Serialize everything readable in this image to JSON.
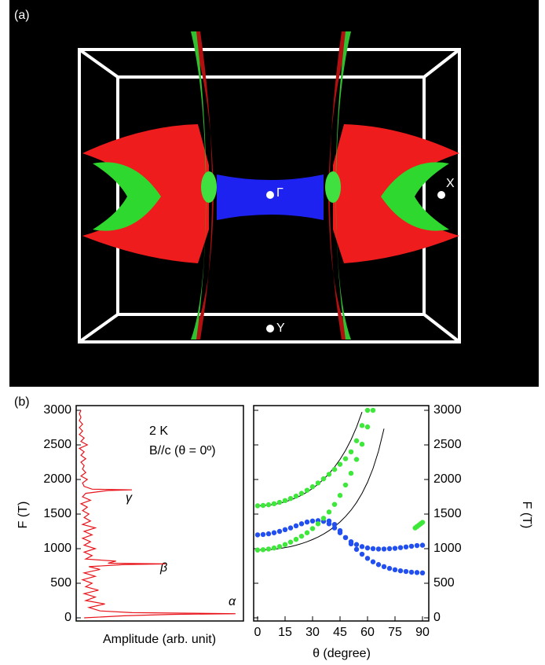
{
  "panel_a": {
    "label": "(a)",
    "points": [
      "Γ",
      "X",
      "Y"
    ]
  },
  "panel_b_label": "(b)",
  "chart_data": [
    {
      "type": "line",
      "xlabel": "Amplitude (arb. unit)",
      "ylabel": "F (T)",
      "annotations": [
        "2 K",
        "B//c (θ = 0º)",
        "γ",
        "β",
        "α"
      ],
      "y": [
        0,
        30,
        50,
        60,
        75,
        100,
        150,
        200,
        250,
        300,
        350,
        400,
        450,
        500,
        550,
        600,
        650,
        700,
        740,
        770,
        780,
        790,
        820,
        850,
        900,
        950,
        1000,
        1050,
        1100,
        1150,
        1200,
        1250,
        1300,
        1350,
        1400,
        1450,
        1500,
        1550,
        1600,
        1650,
        1700,
        1750,
        1800,
        1840,
        1850,
        1860,
        1900,
        1950,
        2000,
        2050,
        2100,
        2150,
        2200,
        2250,
        2300,
        2350,
        2400,
        2450,
        2500,
        2550,
        2600,
        2650,
        2700,
        2750,
        2800,
        2850,
        2900,
        2950,
        3000
      ],
      "series": [
        {
          "color": "#e8141b",
          "values": [
            0.05,
            0.3,
            0.6,
            1.0,
            0.35,
            0.15,
            0.08,
            0.18,
            0.06,
            0.12,
            0.05,
            0.14,
            0.06,
            0.1,
            0.04,
            0.12,
            0.05,
            0.15,
            0.08,
            0.3,
            0.56,
            0.2,
            0.25,
            0.06,
            0.1,
            0.05,
            0.12,
            0.05,
            0.09,
            0.04,
            0.1,
            0.05,
            0.12,
            0.04,
            0.09,
            0.05,
            0.08,
            0.04,
            0.07,
            0.03,
            0.09,
            0.04,
            0.06,
            0.2,
            0.35,
            0.1,
            0.05,
            0.04,
            0.07,
            0.03,
            0.06,
            0.04,
            0.05,
            0.03,
            0.06,
            0.03,
            0.05,
            0.02,
            0.07,
            0.03,
            0.05,
            0.02,
            0.04,
            0.02,
            0.04,
            0.02,
            0.03,
            0.02,
            0.03
          ]
        }
      ],
      "xlim": [
        0,
        1.05
      ],
      "ylim": [
        0,
        3000
      ],
      "yticks": [
        0,
        500,
        1000,
        1500,
        2000,
        2500,
        3000
      ]
    },
    {
      "type": "scatter",
      "xlabel": "θ (degree)",
      "ylabel": "F (T)",
      "xlim": [
        0,
        90
      ],
      "xticks": [
        0,
        15,
        30,
        45,
        60,
        75,
        90
      ],
      "ylim": [
        0,
        3000
      ],
      "yticks": [
        0,
        500,
        1000,
        1500,
        2000,
        2500,
        3000
      ],
      "series": [
        {
          "mode": "line",
          "color": "#000000",
          "x": [
            0,
            3,
            6,
            9,
            12,
            15,
            18,
            21,
            24,
            27,
            30,
            33,
            36,
            39,
            42,
            45,
            48,
            51,
            54,
            57
          ],
          "values": [
            1620,
            1622,
            1629,
            1640,
            1656,
            1677,
            1703,
            1735,
            1773,
            1818,
            1871,
            1932,
            2002,
            2085,
            2180,
            2291,
            2421,
            2574,
            2756,
            2975
          ]
        },
        {
          "mode": "line",
          "color": "#000000",
          "x": [
            0,
            3,
            6,
            9,
            12,
            15,
            18,
            21,
            24,
            27,
            30,
            33,
            36,
            39,
            42,
            45,
            48,
            51,
            54,
            57,
            60,
            63,
            66,
            69
          ],
          "values": [
            980,
            981,
            985,
            992,
            1002,
            1015,
            1030,
            1050,
            1073,
            1100,
            1132,
            1168,
            1211,
            1261,
            1319,
            1386,
            1465,
            1557,
            1667,
            1800,
            1960,
            2159,
            2410,
            2734
          ]
        },
        {
          "mode": "markers",
          "color": "#2250f0",
          "x": [
            0,
            3,
            6,
            9,
            12,
            15,
            18,
            21,
            24,
            27,
            30,
            33,
            36,
            39,
            42,
            45,
            48,
            51,
            54,
            57,
            60,
            63,
            66,
            69,
            72,
            75,
            78,
            81,
            84,
            87,
            90
          ],
          "values": [
            1200,
            1205,
            1215,
            1230,
            1250,
            1275,
            1300,
            1330,
            1360,
            1385,
            1400,
            1405,
            1395,
            1360,
            1300,
            1230,
            1160,
            1100,
            1060,
            1030,
            1010,
            1000,
            995,
            995,
            1000,
            1005,
            1015,
            1025,
            1035,
            1045,
            1050
          ]
        },
        {
          "mode": "markers",
          "color": "#2250f0",
          "x": [
            39,
            42,
            45,
            48,
            51,
            54,
            57,
            60,
            63,
            66,
            69,
            72,
            75,
            78,
            81,
            84,
            87,
            90
          ],
          "values": [
            1400,
            1350,
            1260,
            1160,
            1070,
            990,
            920,
            860,
            810,
            770,
            740,
            715,
            695,
            680,
            670,
            660,
            655,
            650
          ]
        },
        {
          "mode": "markers",
          "color": "#3ee83a",
          "x": [
            0,
            3,
            6,
            9,
            12,
            15,
            18,
            21,
            24,
            27,
            30,
            33,
            36,
            39,
            42,
            45,
            48,
            51,
            54,
            57,
            60,
            63
          ],
          "values": [
            980,
            985,
            995,
            1010,
            1030,
            1060,
            1095,
            1135,
            1180,
            1230,
            1290,
            1360,
            1440,
            1530,
            1640,
            1770,
            1920,
            2090,
            2290,
            2510,
            2760,
            3000
          ]
        },
        {
          "mode": "markers",
          "color": "#3ee83a",
          "x": [
            0,
            3,
            6,
            9,
            12,
            15,
            18,
            21,
            24,
            27,
            30,
            33,
            36,
            39,
            42,
            45,
            48,
            51,
            54,
            57,
            60
          ],
          "values": [
            1620,
            1625,
            1635,
            1650,
            1670,
            1695,
            1725,
            1760,
            1800,
            1845,
            1895,
            1950,
            2010,
            2075,
            2145,
            2220,
            2300,
            2400,
            2560,
            2780,
            3000
          ]
        },
        {
          "mode": "markers",
          "color": "#3ee83a",
          "x": [
            86,
            87,
            88,
            89,
            90
          ],
          "values": [
            1300,
            1320,
            1340,
            1360,
            1380
          ]
        }
      ]
    }
  ]
}
